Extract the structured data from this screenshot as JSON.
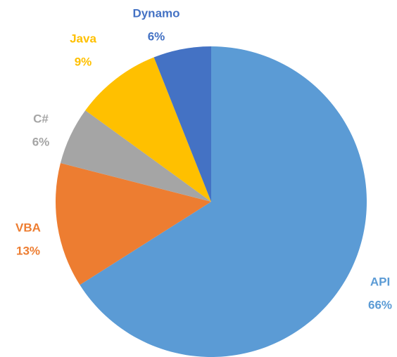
{
  "chart_data": {
    "type": "pie",
    "categories": [
      "API",
      "VBA",
      "C#",
      "Java",
      "Dynamo"
    ],
    "values": [
      66,
      13,
      6,
      9,
      6
    ],
    "value_labels": [
      "66%",
      "13%",
      "6%",
      "9%",
      "6%"
    ],
    "colors": [
      "#5b9bd5",
      "#ed7d31",
      "#a5a5a5",
      "#ffc000",
      "#4472c4"
    ]
  }
}
